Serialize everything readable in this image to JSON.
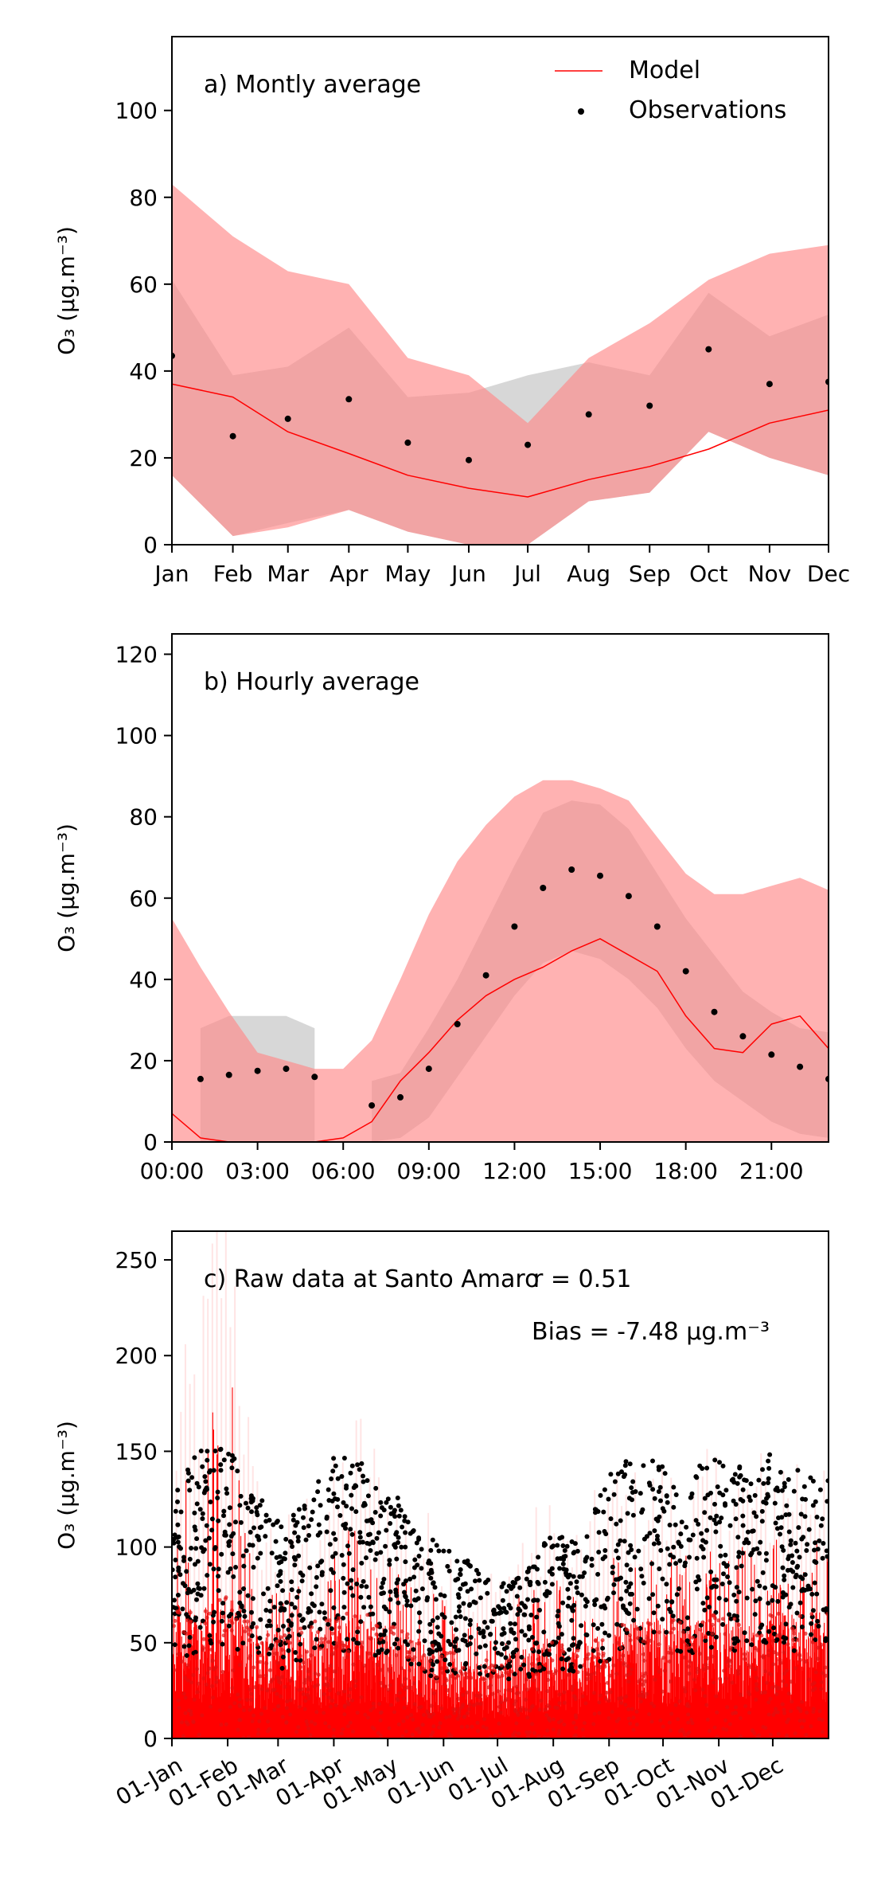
{
  "chart_data": [
    {
      "type": "line",
      "panel_label": "a) Montly average",
      "ylabel": "O₃ (μg.m⁻³)",
      "ylim": [
        0,
        117
      ],
      "yticks": [
        0,
        20,
        40,
        60,
        80,
        100
      ],
      "categories": [
        "Jan",
        "Feb",
        "Mar",
        "Apr",
        "May",
        "Jun",
        "Jul",
        "Aug",
        "Sep",
        "Oct",
        "Nov",
        "Dec"
      ],
      "x_days": [
        0,
        31,
        59,
        90,
        120,
        151,
        181,
        212,
        243,
        273,
        304,
        334
      ],
      "xlim": [
        0,
        334
      ],
      "legend": {
        "position": "top-right",
        "entries": [
          "Model",
          "Observations"
        ]
      },
      "model": {
        "name": "Model",
        "mean": [
          37,
          34,
          26,
          21,
          16,
          13,
          11,
          15,
          18,
          22,
          28,
          31
        ],
        "band_low": [
          16,
          2,
          4,
          8,
          3,
          0,
          0,
          10,
          12,
          26,
          20,
          16
        ],
        "band_high": [
          83,
          71,
          63,
          60,
          43,
          39,
          28,
          43,
          51,
          61,
          67,
          69
        ]
      },
      "observations": {
        "name": "Observations",
        "mean": [
          43.5,
          25,
          29,
          33.5,
          23.5,
          19.5,
          23,
          30,
          32,
          45,
          37,
          37.5
        ],
        "band_low": [
          16,
          2,
          5,
          8,
          3,
          0,
          0,
          10,
          12,
          26,
          20,
          16
        ],
        "band_high": [
          61,
          39,
          41,
          50,
          34,
          35,
          39,
          42,
          39,
          58,
          48,
          53
        ]
      }
    },
    {
      "type": "line",
      "panel_label": "b) Hourly average",
      "ylabel": "O₃ (μg.m⁻³)",
      "ylim": [
        0,
        125
      ],
      "yticks": [
        0,
        20,
        40,
        60,
        80,
        100,
        120
      ],
      "xlim": [
        0,
        23
      ],
      "xticks": [
        "00:00",
        "03:00",
        "06:00",
        "09:00",
        "12:00",
        "15:00",
        "18:00",
        "21:00"
      ],
      "xtick_hours": [
        0,
        3,
        6,
        9,
        12,
        15,
        18,
        21
      ],
      "model": {
        "hours": [
          0,
          1,
          2,
          3,
          4,
          5,
          6,
          7,
          8,
          9,
          10,
          11,
          12,
          13,
          14,
          15,
          16,
          17,
          18,
          19,
          20,
          21,
          22,
          23
        ],
        "mean": [
          7,
          1,
          0,
          0,
          0,
          0,
          1,
          5,
          15,
          22,
          30,
          36,
          40,
          43,
          47,
          50,
          46,
          42,
          31,
          23,
          22,
          29,
          31,
          23
        ],
        "band_low": [
          0,
          0,
          0,
          0,
          0,
          0,
          0,
          0,
          0,
          0,
          0,
          0,
          0,
          0,
          0,
          0,
          0,
          0,
          0,
          0,
          0,
          0,
          0,
          0
        ],
        "band_high": [
          55,
          43,
          32,
          22,
          20,
          18,
          18,
          25,
          40,
          56,
          69,
          78,
          85,
          89,
          89,
          87,
          84,
          75,
          66,
          61,
          61,
          63,
          65,
          62
        ]
      },
      "observations": {
        "hours": [
          1,
          2,
          3,
          4,
          5,
          7,
          8,
          9,
          10,
          11,
          12,
          13,
          14,
          15,
          16,
          17,
          18,
          19,
          20,
          21,
          22,
          23
        ],
        "mean": [
          15.5,
          16.5,
          17.5,
          18,
          16,
          9,
          11,
          18,
          29,
          41,
          53,
          62.5,
          67,
          65.5,
          60.5,
          53,
          42,
          32,
          26,
          21.5,
          18.5,
          15.5
        ],
        "segments": [
          {
            "hours": [
              1,
              2,
              3,
              4,
              5
            ],
            "band_low": [
              0,
              0,
              0,
              0,
              0
            ],
            "band_high": [
              28,
              31,
              31,
              31,
              28
            ]
          },
          {
            "hours": [
              7,
              8,
              9,
              10,
              11,
              12,
              13,
              14,
              15,
              16,
              17,
              18,
              19,
              20,
              21,
              22,
              23
            ],
            "band_low": [
              0,
              1,
              6,
              16,
              26,
              36,
              44,
              47,
              45,
              40,
              33,
              23,
              15,
              10,
              5,
              2,
              1
            ],
            "band_high": [
              15,
              17,
              28,
              40,
              54,
              68,
              81,
              84,
              83,
              77,
              66,
              55,
              46,
              37,
              32,
              28,
              27
            ]
          }
        ]
      }
    },
    {
      "type": "line",
      "panel_label": "c) Raw data at Santo Amaro",
      "stats": [
        "r = 0.51",
        "Bias = -7.48 μg.m⁻³"
      ],
      "ylabel": "O₃ (μg.m⁻³)",
      "ylim": [
        0,
        265
      ],
      "yticks": [
        0,
        50,
        100,
        150,
        200,
        250
      ],
      "xlim": [
        0,
        365
      ],
      "xticks": [
        "01-Jan",
        "01-Feb",
        "01-Mar",
        "01-Apr",
        "01-May",
        "01-Jun",
        "01-Jul",
        "01-Aug",
        "01-Sep",
        "01-Oct",
        "01-Nov",
        "01-Dec"
      ],
      "xtick_days": [
        0,
        31,
        59,
        90,
        120,
        151,
        181,
        212,
        243,
        273,
        304,
        334
      ],
      "model_envelope": {
        "days": [
          0,
          15,
          31,
          45,
          59,
          75,
          90,
          105,
          120,
          135,
          151,
          165,
          181,
          196,
          212,
          228,
          243,
          258,
          273,
          288,
          304,
          320,
          334,
          350,
          365
        ],
        "peak": [
          125,
          150,
          225,
          100,
          75,
          90,
          100,
          120,
          95,
          85,
          75,
          65,
          60,
          80,
          85,
          75,
          100,
          95,
          100,
          95,
          105,
          100,
          105,
          110,
          115
        ],
        "typical": [
          60,
          55,
          65,
          50,
          45,
          50,
          55,
          55,
          50,
          45,
          40,
          35,
          35,
          40,
          45,
          40,
          50,
          50,
          55,
          50,
          55,
          50,
          55,
          55,
          55
        ]
      },
      "observations_envelope": {
        "days": [
          0,
          15,
          31,
          45,
          59,
          75,
          90,
          105,
          120,
          135,
          151,
          165,
          181,
          196,
          212,
          228,
          243,
          258,
          273,
          288,
          304,
          320,
          334,
          350,
          365
        ],
        "high": [
          130,
          150,
          155,
          130,
          115,
          125,
          148,
          145,
          135,
          110,
          100,
          95,
          80,
          85,
          110,
          100,
          148,
          145,
          145,
          140,
          148,
          140,
          150,
          140,
          140
        ],
        "low": [
          40,
          45,
          50,
          40,
          35,
          40,
          45,
          45,
          40,
          35,
          30,
          30,
          30,
          30,
          35,
          35,
          40,
          40,
          45,
          40,
          45,
          40,
          45,
          45,
          45
        ]
      }
    }
  ],
  "colors": {
    "model": "#ff0000",
    "model_band": "#ff8888",
    "obs_band": "#bdbdbd",
    "observations": "#000000"
  }
}
